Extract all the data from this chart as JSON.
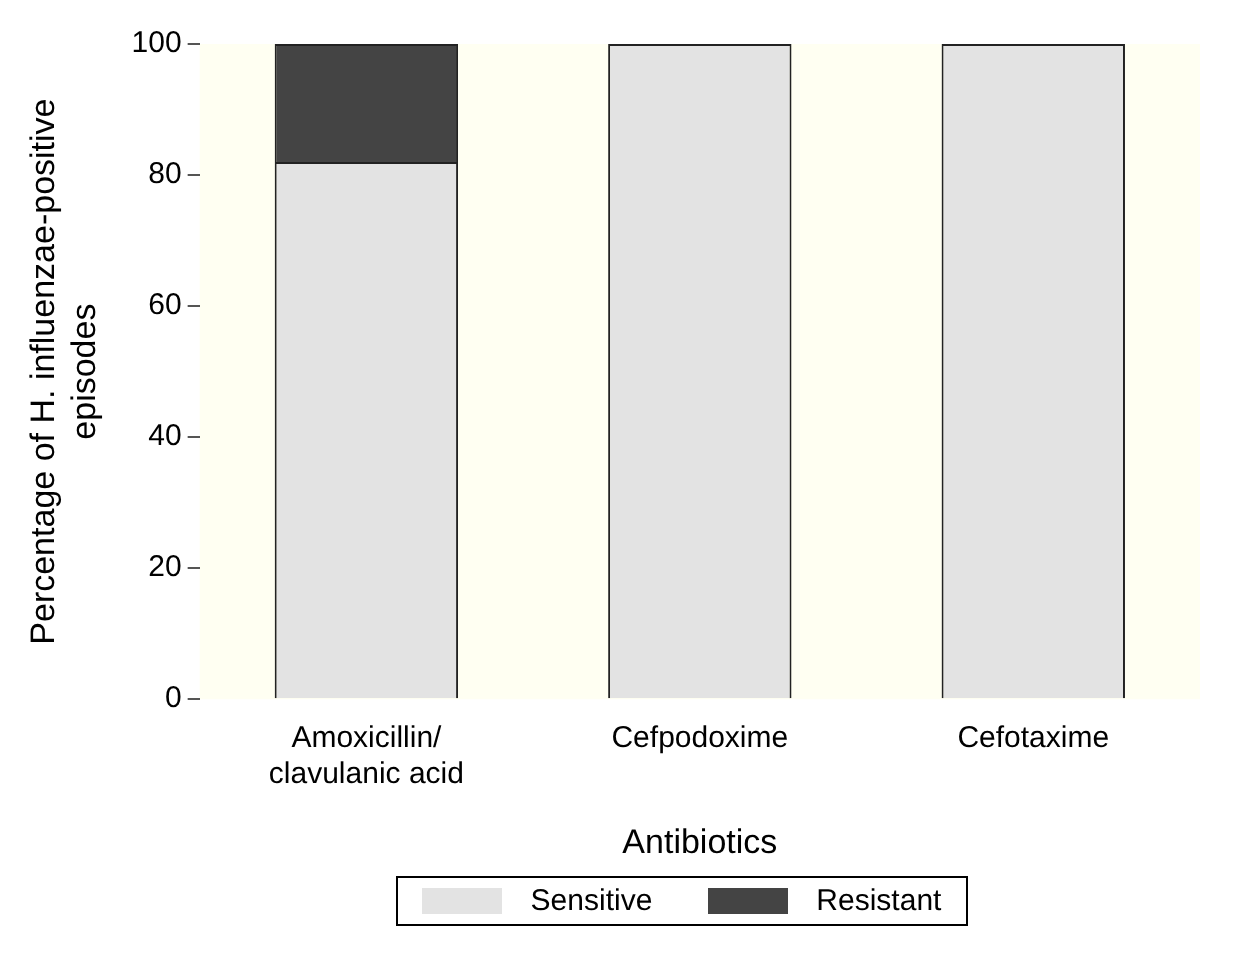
{
  "chart_data": {
    "type": "bar",
    "stacked": true,
    "xlabel": "Antibiotics",
    "ylabel": "Percentage of H. influenzae-positive episodes",
    "categories": [
      "Amoxicillin/clavulanic acid",
      "Cefpodoxime",
      "Cefotaxime"
    ],
    "series": [
      {
        "name": "Sensitive",
        "color": "#e3e3e3",
        "values": [
          82,
          100,
          100
        ]
      },
      {
        "name": "Resistant",
        "color": "#444444",
        "values": [
          18,
          0,
          0
        ]
      }
    ],
    "ylim": [
      0,
      100
    ],
    "yticks": [
      0,
      20,
      40,
      60,
      80,
      100
    ],
    "grid": false,
    "legend": "bottom"
  }
}
